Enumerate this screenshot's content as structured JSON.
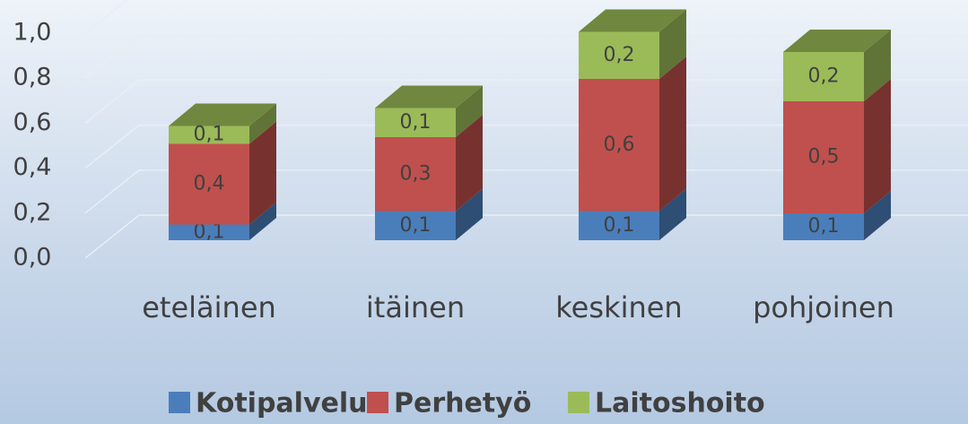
{
  "chart_data": {
    "type": "bar3d_stacked",
    "categories": [
      "eteläinen",
      "itäinen",
      "keskinen",
      "pohjoinen"
    ],
    "series": [
      {
        "name": "Kotipalvelu",
        "color": "#4a7ebb",
        "values": [
          0.07,
          0.13,
          0.13,
          0.12
        ],
        "value_labels": [
          "0,1",
          "0,1",
          "0,1",
          "0,1"
        ]
      },
      {
        "name": "Perhetyö",
        "color": "#c0504d",
        "values": [
          0.36,
          0.33,
          0.59,
          0.5
        ],
        "value_labels": [
          "0,4",
          "0,3",
          "0,6",
          "0,5"
        ]
      },
      {
        "name": "Laitoshoito",
        "color": "#9bbb59",
        "values": [
          0.08,
          0.13,
          0.21,
          0.22
        ],
        "value_labels": [
          "0,1",
          "0,1",
          "0,2",
          "0,2"
        ]
      }
    ],
    "ylim": [
      0,
      1
    ],
    "yticks": [
      {
        "value": 0,
        "label": "0,0"
      },
      {
        "value": 0.2,
        "label": "0,2"
      },
      {
        "value": 0.4,
        "label": "0,4"
      },
      {
        "value": 0.6,
        "label": "0,6"
      },
      {
        "value": 0.8,
        "label": "0,8"
      },
      {
        "value": 1,
        "label": "1,0"
      }
    ],
    "grid": true,
    "legend": "bottom"
  }
}
